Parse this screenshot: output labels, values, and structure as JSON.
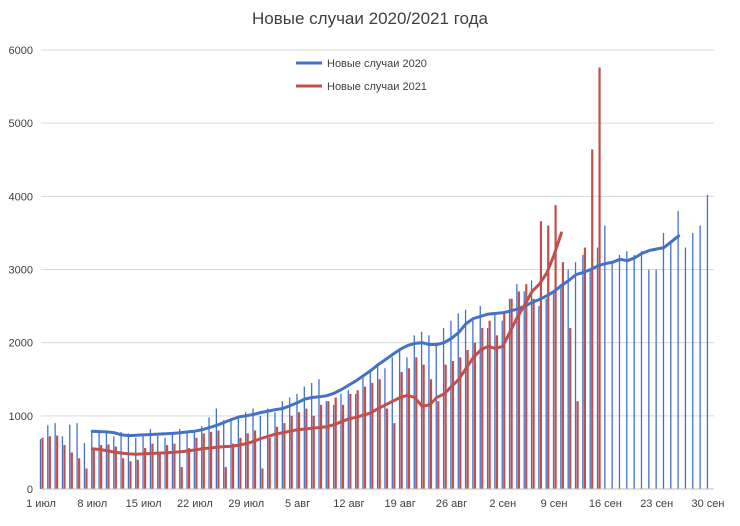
{
  "chart_data": {
    "type": "bar+line",
    "title": "Новые случаи 2020/2021 года",
    "xlabel": "",
    "ylabel": "",
    "ylim": [
      0,
      6000
    ],
    "yticks": [
      0,
      1000,
      2000,
      3000,
      4000,
      5000,
      6000
    ],
    "xtick_labels": [
      "1 июл",
      "8 июл",
      "15 июл",
      "22 июл",
      "29 июл",
      "5 авг",
      "12 авг",
      "19 авг",
      "26 авг",
      "2 сен",
      "9 сен",
      "16 сен",
      "23 сен",
      "30 сен"
    ],
    "xtick_days": [
      0,
      7,
      14,
      21,
      28,
      35,
      42,
      49,
      56,
      63,
      70,
      77,
      84,
      91
    ],
    "grid": true,
    "legend_position": "top-center",
    "colors": {
      "series_2020": "#4472c4",
      "series_2021": "#c0504d",
      "grid": "#d9d9d9",
      "text": "#404040"
    },
    "series": [
      {
        "name": "Новые случаи 2020",
        "type": "bar",
        "day_start": 0,
        "values": [
          680,
          870,
          900,
          720,
          880,
          900,
          630,
          780,
          800,
          780,
          720,
          780,
          760,
          700,
          720,
          820,
          760,
          700,
          780,
          820,
          760,
          800,
          860,
          980,
          1100,
          940,
          950,
          1000,
          1050,
          1100,
          1000,
          1100,
          1050,
          1200,
          1250,
          1300,
          1400,
          1450,
          1500,
          1200,
          1150,
          1300,
          1350,
          1300,
          1550,
          1600,
          1700,
          1650,
          1800,
          1900,
          1800,
          2100,
          2150,
          2100,
          2000,
          2200,
          2300,
          2400,
          2450,
          2300,
          2500,
          2200,
          2400,
          2300,
          2600,
          2800,
          2700,
          2850,
          2500,
          2600,
          2700,
          2800,
          3000,
          3100,
          3200,
          3000,
          3300,
          3600,
          3100,
          3200,
          3250,
          3200,
          3250,
          3000,
          3000,
          3500,
          3400,
          3800,
          3300,
          3500,
          3600,
          4020
        ]
      },
      {
        "name": "Новые случаи 2021",
        "type": "bar",
        "day_start": 0,
        "values": [
          700,
          720,
          730,
          600,
          500,
          420,
          280,
          540,
          600,
          610,
          580,
          420,
          380,
          400,
          560,
          620,
          480,
          600,
          620,
          300,
          560,
          700,
          760,
          780,
          800,
          300,
          620,
          700,
          760,
          800,
          280,
          700,
          850,
          900,
          1000,
          1050,
          1100,
          1000,
          1150,
          1200,
          1250,
          1150,
          1300,
          1350,
          1400,
          1450,
          1500,
          1100,
          900,
          1600,
          1650,
          1800,
          1700,
          1500,
          1200,
          1700,
          1750,
          1800,
          1900,
          2000,
          2200,
          2300,
          2100,
          2400,
          2600,
          2700,
          2800,
          2600,
          3660,
          3600,
          3880,
          3100,
          2200,
          1200,
          3300,
          4640,
          5760
        ]
      },
      {
        "name": "Новые случаи 2020",
        "type": "line",
        "day_start": 7,
        "values": [
          790,
          785,
          780,
          770,
          740,
          730,
          735,
          740,
          745,
          750,
          755,
          760,
          770,
          780,
          790,
          810,
          840,
          870,
          910,
          950,
          985,
          1000,
          1020,
          1045,
          1065,
          1085,
          1100,
          1140,
          1180,
          1230,
          1250,
          1260,
          1275,
          1310,
          1360,
          1420,
          1480,
          1550,
          1620,
          1700,
          1770,
          1840,
          1910,
          1960,
          1990,
          2000,
          1975,
          1975,
          2000,
          2060,
          2140,
          2260,
          2330,
          2360,
          2390,
          2400,
          2410,
          2430,
          2460,
          2500,
          2550,
          2590,
          2640,
          2700,
          2780,
          2850,
          2930,
          2960,
          3000,
          3050,
          3080,
          3100,
          3140,
          3120,
          3160,
          3220,
          3260,
          3280,
          3300,
          3380,
          3460
        ]
      },
      {
        "name": "Новые случаи 2021",
        "type": "line",
        "day_start": 7,
        "values": [
          550,
          540,
          525,
          505,
          490,
          480,
          475,
          480,
          485,
          490,
          495,
          500,
          510,
          520,
          535,
          550,
          560,
          570,
          580,
          585,
          600,
          620,
          650,
          690,
          720,
          750,
          770,
          790,
          810,
          820,
          830,
          840,
          850,
          880,
          920,
          960,
          980,
          1010,
          1040,
          1100,
          1150,
          1200,
          1250,
          1280,
          1250,
          1130,
          1150,
          1250,
          1300,
          1400,
          1500,
          1650,
          1800,
          1900,
          1950,
          1920,
          1950,
          2150,
          2350,
          2520,
          2700,
          2800,
          2950,
          3200,
          3500
        ]
      }
    ]
  }
}
